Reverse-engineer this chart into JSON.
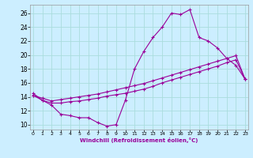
{
  "xlabel": "Windchill (Refroidissement éolien,°C)",
  "bg_color": "#cceeff",
  "line_color": "#990099",
  "grid_color": "#aadddd",
  "x_ticks": [
    0,
    1,
    2,
    3,
    4,
    5,
    6,
    7,
    8,
    9,
    10,
    11,
    12,
    13,
    14,
    15,
    16,
    17,
    18,
    19,
    20,
    21,
    22,
    23
  ],
  "y_ticks": [
    10,
    12,
    14,
    16,
    18,
    20,
    22,
    24,
    26
  ],
  "xlim": [
    -0.3,
    23.3
  ],
  "ylim": [
    9.3,
    27.2
  ],
  "line1_x": [
    0,
    1,
    2,
    3,
    4,
    5,
    6,
    7,
    8,
    9,
    10,
    11,
    12,
    13,
    14,
    15,
    16,
    17,
    18,
    19,
    20,
    21,
    22,
    23
  ],
  "line1_y": [
    14.5,
    13.5,
    12.8,
    11.5,
    11.3,
    11.0,
    11.0,
    10.3,
    9.8,
    10.0,
    13.5,
    18.0,
    20.5,
    22.5,
    24.0,
    26.0,
    25.8,
    26.5,
    22.5,
    22.0,
    21.0,
    19.5,
    18.5,
    16.5
  ],
  "line2_x": [
    0,
    1,
    2,
    3,
    4,
    5,
    6,
    7,
    8,
    9,
    10,
    11,
    12,
    13,
    14,
    15,
    16,
    17,
    18,
    19,
    20,
    21,
    22,
    23
  ],
  "line2_y": [
    14.2,
    13.5,
    13.1,
    13.1,
    13.3,
    13.4,
    13.6,
    13.8,
    14.1,
    14.3,
    14.5,
    14.8,
    15.1,
    15.5,
    16.0,
    16.4,
    16.8,
    17.2,
    17.6,
    18.0,
    18.4,
    18.9,
    19.3,
    16.5
  ],
  "line3_x": [
    0,
    1,
    2,
    3,
    4,
    5,
    6,
    7,
    8,
    9,
    10,
    11,
    12,
    13,
    14,
    15,
    16,
    17,
    18,
    19,
    20,
    21,
    22,
    23
  ],
  "line3_y": [
    14.2,
    13.8,
    13.4,
    13.6,
    13.8,
    14.0,
    14.2,
    14.4,
    14.7,
    15.0,
    15.3,
    15.6,
    15.9,
    16.3,
    16.7,
    17.1,
    17.5,
    17.9,
    18.3,
    18.7,
    19.1,
    19.5,
    19.9,
    16.5
  ]
}
